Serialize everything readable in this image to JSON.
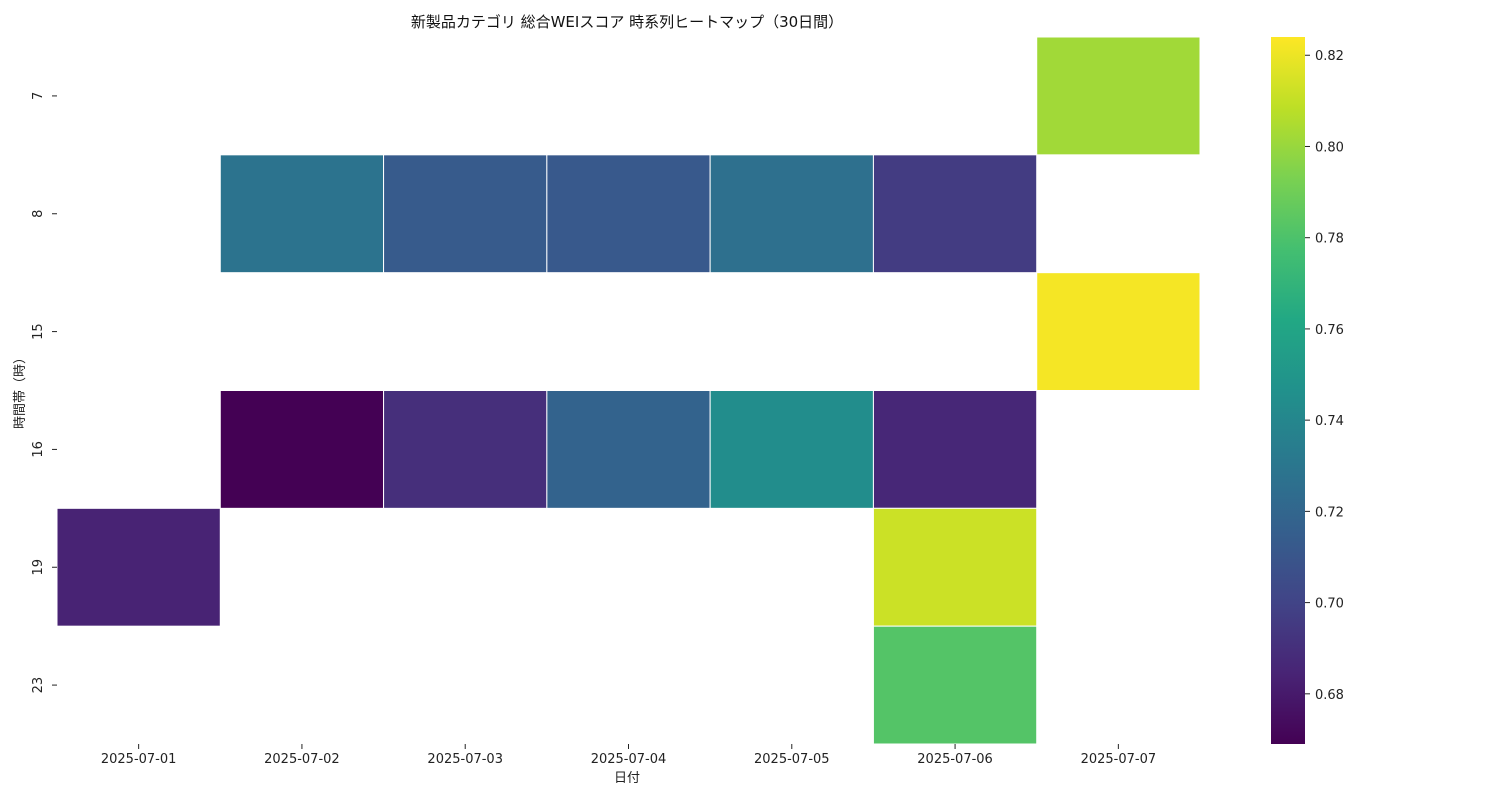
{
  "chart_data": {
    "type": "heatmap",
    "title": "新製品カテゴリ 総合WEIスコア 時系列ヒートマップ（30日間）",
    "xlabel": "日付",
    "ylabel": "時間帯（時）",
    "x": [
      "2025-07-01",
      "2025-07-02",
      "2025-07-03",
      "2025-07-04",
      "2025-07-05",
      "2025-07-06",
      "2025-07-07"
    ],
    "y": [
      "7",
      "8",
      "15",
      "16",
      "19",
      "23"
    ],
    "values": [
      [
        null,
        null,
        null,
        null,
        null,
        null,
        0.802
      ],
      [
        null,
        0.728,
        0.713,
        0.712,
        0.726,
        0.696,
        null
      ],
      [
        null,
        null,
        null,
        null,
        null,
        null,
        0.822
      ],
      [
        null,
        0.669,
        0.69,
        0.718,
        0.744,
        0.686,
        null
      ],
      [
        0.684,
        null,
        null,
        null,
        null,
        0.812,
        null
      ],
      [
        null,
        null,
        null,
        null,
        null,
        0.782,
        null
      ]
    ],
    "colorscale": "viridis",
    "zlim": [
      0.669,
      0.824
    ],
    "colorbar_ticks": [
      "0.68",
      "0.70",
      "0.72",
      "0.74",
      "0.76",
      "0.78",
      "0.80",
      "0.82"
    ],
    "grid": false,
    "legend": "colorbar-right"
  }
}
